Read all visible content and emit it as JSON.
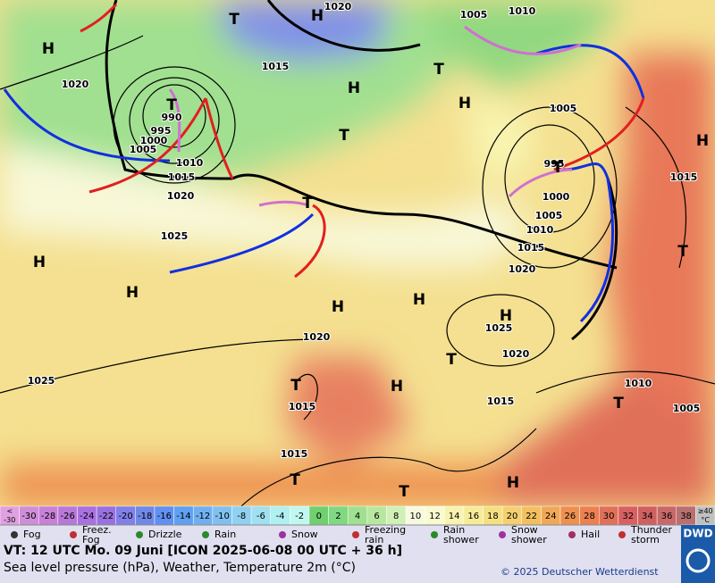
{
  "map": {
    "isobar_labels": [
      "1020",
      "1005",
      "1010",
      "1015",
      "1020",
      "990",
      "995",
      "1000",
      "1005",
      "1010",
      "1015",
      "1020",
      "1025",
      "1005",
      "995",
      "1000",
      "1005",
      "1010",
      "1015",
      "1020",
      "1025",
      "1020",
      "1020",
      "1025",
      "1015",
      "1015",
      "1010",
      "1005",
      "1015",
      "1015"
    ],
    "pressure_centers": [
      "H",
      "T",
      "H",
      "T",
      "H",
      "T",
      "H",
      "T",
      "H",
      "T",
      "T",
      "H",
      "H",
      "H",
      "H",
      "T",
      "H",
      "T",
      "T",
      "H",
      "T",
      "T",
      "T",
      "H"
    ]
  },
  "scale": {
    "labels": [
      "< -30",
      "-30",
      "-28",
      "-26",
      "-24",
      "-22",
      "-20",
      "-18",
      "-16",
      "-14",
      "-12",
      "-10",
      "-8",
      "-6",
      "-4",
      "-2",
      "0",
      "2",
      "4",
      "6",
      "8",
      "10",
      "12",
      "14",
      "16",
      "18",
      "20",
      "22",
      "24",
      "26",
      "28",
      "30",
      "32",
      "34",
      "36",
      "38",
      "≥40 °C"
    ],
    "colors": [
      "#e0a0e0",
      "#d08ed8",
      "#c880d8",
      "#b878d8",
      "#a870e0",
      "#9870e0",
      "#8080e8",
      "#7088e8",
      "#6090f0",
      "#60a0f0",
      "#70b0f0",
      "#80c0f0",
      "#90d0f0",
      "#a0e0f0",
      "#b0f0f0",
      "#c0f8f0",
      "#70d070",
      "#80d880",
      "#a0e090",
      "#b8e8a0",
      "#d0f0b8",
      "#f8fae0",
      "#fafad0",
      "#f8f4b0",
      "#f6ec98",
      "#f4e080",
      "#f4d070",
      "#f2c060",
      "#f0a858",
      "#ee9050",
      "#ec8050",
      "#e07058",
      "#d86060",
      "#d06060",
      "#c86868",
      "#b87070",
      "#c0c0c0"
    ]
  },
  "weather_legend": [
    [
      "Fog"
    ],
    [
      "Freez.",
      "Fog"
    ],
    [
      "Drizzle"
    ],
    [
      "Rain"
    ],
    [
      "Snow"
    ],
    [
      "Freezing",
      "rain"
    ],
    [
      "Rain",
      "shower"
    ],
    [
      "Snow",
      "shower"
    ],
    [
      "Hail"
    ],
    [
      "Thunder",
      "storm"
    ]
  ],
  "footer": {
    "valid_time": "VT: 12 UTC Mo.  09 Juni [ICON 2025-06-08  00 UTC + 36 h]",
    "description": "Sea level pressure (hPa), Weather, Temperature 2m (°C)",
    "copyright": "© 2025 Deutscher Wetterdienst",
    "logo": "DWD"
  }
}
